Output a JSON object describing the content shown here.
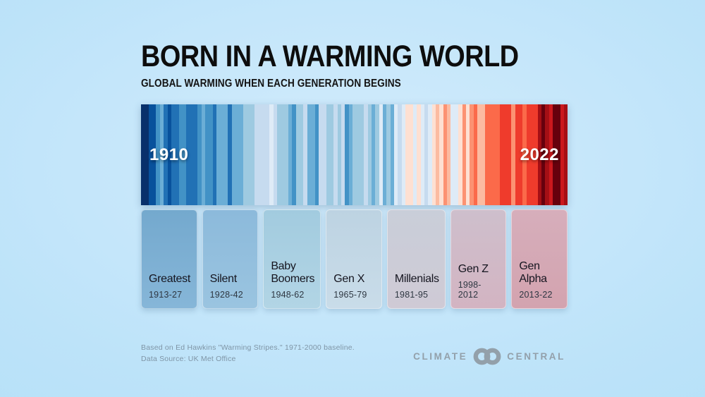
{
  "chart_data": {
    "type": "heatmap",
    "title": "BORN IN A WARMING WORLD",
    "subtitle": "GLOBAL WARMING WHEN EACH GENERATION BEGINS",
    "x_range": [
      1910,
      2022
    ],
    "stripe_start_label": "1910",
    "stripe_end_label": "2022",
    "legend_note": "warming stripes: blue = cooler than baseline, red = warmer than baseline",
    "stripe_colors": [
      "#08306b",
      "#08306b",
      "#08519c",
      "#08519c",
      "#4292c6",
      "#6baed6",
      "#2171b5",
      "#08519c",
      "#2171b5",
      "#2171b5",
      "#4292c6",
      "#4292c6",
      "#2171b5",
      "#2171b5",
      "#2171b5",
      "#4292c6",
      "#6baed6",
      "#4292c6",
      "#4292c6",
      "#2171b5",
      "#6baed6",
      "#6baed6",
      "#6baed6",
      "#2171b5",
      "#6baed6",
      "#6baed6",
      "#6baed6",
      "#9ecae1",
      "#9ecae1",
      "#9ecae1",
      "#c6dbef",
      "#c6dbef",
      "#c6dbef",
      "#c6dbef",
      "#deebf7",
      "#c6dbef",
      "#9ecae1",
      "#9ecae1",
      "#9ecae1",
      "#6baed6",
      "#4292c6",
      "#9ecae1",
      "#9ecae1",
      "#c6dbef",
      "#6baed6",
      "#6baed6",
      "#4292c6",
      "#c6dbef",
      "#c6dbef",
      "#9ecae1",
      "#9ecae1",
      "#c6dbef",
      "#9ecae1",
      "#c6dbef",
      "#4292c6",
      "#6baed6",
      "#9ecae1",
      "#9ecae1",
      "#9ecae1",
      "#c6dbef",
      "#9ecae1",
      "#6baed6",
      "#9ecae1",
      "#deebf7",
      "#6baed6",
      "#9ecae1",
      "#6baed6",
      "#deebf7",
      "#c6dbef",
      "#deebf7",
      "#fee0d2",
      "#fee0d2",
      "#deebf7",
      "#fee0d2",
      "#deebf7",
      "#c6dbef",
      "#deebf7",
      "#fee0d2",
      "#fcbba1",
      "#fee0d2",
      "#fc9272",
      "#fcbba1",
      "#deebf7",
      "#deebf7",
      "#fee0d2",
      "#fc9272",
      "#fee0d2",
      "#fc9272",
      "#fb6a4a",
      "#fcbba1",
      "#fcbba1",
      "#fb6a4a",
      "#fb6a4a",
      "#fb6a4a",
      "#fb6a4a",
      "#ef3b2c",
      "#ef3b2c",
      "#ef3b2c",
      "#fc9272",
      "#ef3b2c",
      "#ef3b2c",
      "#fb6a4a",
      "#ef3b2c",
      "#ef3b2c",
      "#ef3b2c",
      "#a50f15",
      "#67000d",
      "#a50f15",
      "#cb181d",
      "#67000d",
      "#67000d",
      "#cb181d",
      "#a50f15"
    ],
    "generations": [
      {
        "name": "Greatest",
        "years": "1913-27",
        "color_top": "#74a9ce",
        "color_bottom": "#86b6d8"
      },
      {
        "name": "Silent",
        "years": "1928-42",
        "color_top": "#8cbadb",
        "color_bottom": "#9ac4e0"
      },
      {
        "name": "Baby Boomers",
        "years": "1948-62",
        "color_top": "#a2cbdf",
        "color_bottom": "#b2d5e5"
      },
      {
        "name": "Gen X",
        "years": "1965-79",
        "color_top": "#bdd3e2",
        "color_bottom": "#c9dce9"
      },
      {
        "name": "Millenials",
        "years": "1981-95",
        "color_top": "#c9ced9",
        "color_bottom": "#cfcad5"
      },
      {
        "name": "Gen Z",
        "years": "1998-2012",
        "color_top": "#cebfcc",
        "color_bottom": "#d3b4c2"
      },
      {
        "name": "Gen Alpha",
        "years": "2013-22",
        "color_top": "#d6aebb",
        "color_bottom": "#d3a3af"
      }
    ]
  },
  "footer": {
    "line1": "Based on Ed Hawkins \"Warming Stripes.\" 1971-2000 baseline.",
    "line2": "Data Source: UK Met Office",
    "logo": {
      "left": "CLIMATE",
      "right": "CENTRAL",
      "icon": "interlocking-rings-icon",
      "color": "#93a0aa"
    }
  }
}
